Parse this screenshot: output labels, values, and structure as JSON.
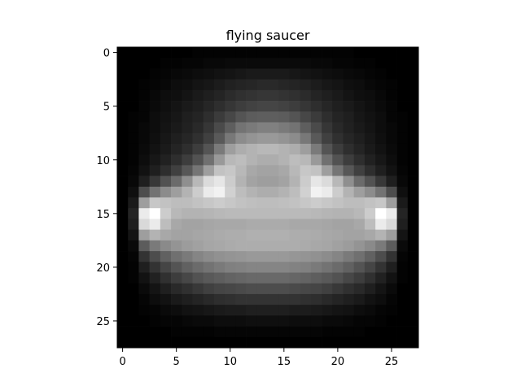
{
  "chart_data": {
    "type": "heatmap",
    "title": "flying saucer",
    "colormap": "gray",
    "xlabel": "",
    "ylabel": "",
    "xlim": [
      -0.5,
      27.5
    ],
    "ylim": [
      27.5,
      -0.5
    ],
    "x_ticks": [
      0,
      5,
      10,
      15,
      20,
      25
    ],
    "y_ticks": [
      0,
      5,
      10,
      15,
      20,
      25
    ],
    "x_tick_labels": [
      "0",
      "5",
      "10",
      "15",
      "20",
      "25"
    ],
    "y_tick_labels": [
      "0",
      "5",
      "10",
      "15",
      "20",
      "25"
    ],
    "grid": false,
    "vmin": 0,
    "vmax": 1,
    "rows": 28,
    "cols": 28,
    "values": [
      [
        0.0,
        0.0,
        0.0,
        0.0,
        0.0,
        0.0,
        0.0,
        0.01,
        0.01,
        0.01,
        0.01,
        0.01,
        0.01,
        0.01,
        0.01,
        0.01,
        0.01,
        0.01,
        0.01,
        0.01,
        0.01,
        0.01,
        0.0,
        0.0,
        0.0,
        0.0,
        0.0,
        0.0
      ],
      [
        0.0,
        0.0,
        0.0,
        0.0,
        0.01,
        0.01,
        0.02,
        0.02,
        0.03,
        0.03,
        0.04,
        0.04,
        0.04,
        0.04,
        0.04,
        0.04,
        0.04,
        0.04,
        0.03,
        0.03,
        0.02,
        0.02,
        0.01,
        0.01,
        0.0,
        0.0,
        0.0,
        0.0
      ],
      [
        0.0,
        0.0,
        0.0,
        0.01,
        0.02,
        0.03,
        0.04,
        0.05,
        0.06,
        0.07,
        0.08,
        0.09,
        0.1,
        0.1,
        0.1,
        0.1,
        0.09,
        0.08,
        0.07,
        0.06,
        0.05,
        0.04,
        0.03,
        0.02,
        0.01,
        0.0,
        0.0,
        0.0
      ],
      [
        0.0,
        0.0,
        0.01,
        0.02,
        0.03,
        0.05,
        0.06,
        0.08,
        0.09,
        0.11,
        0.13,
        0.14,
        0.15,
        0.16,
        0.16,
        0.15,
        0.14,
        0.13,
        0.11,
        0.09,
        0.08,
        0.06,
        0.05,
        0.03,
        0.02,
        0.01,
        0.0,
        0.0
      ],
      [
        0.0,
        0.0,
        0.01,
        0.03,
        0.05,
        0.06,
        0.08,
        0.1,
        0.12,
        0.14,
        0.17,
        0.19,
        0.2,
        0.21,
        0.21,
        0.2,
        0.19,
        0.17,
        0.14,
        0.12,
        0.1,
        0.08,
        0.06,
        0.05,
        0.03,
        0.01,
        0.0,
        0.0
      ],
      [
        0.0,
        0.0,
        0.02,
        0.04,
        0.06,
        0.08,
        0.1,
        0.12,
        0.15,
        0.18,
        0.21,
        0.24,
        0.26,
        0.27,
        0.27,
        0.26,
        0.24,
        0.21,
        0.18,
        0.15,
        0.12,
        0.1,
        0.08,
        0.06,
        0.04,
        0.02,
        0.0,
        0.0
      ],
      [
        0.0,
        0.01,
        0.02,
        0.05,
        0.07,
        0.09,
        0.12,
        0.14,
        0.18,
        0.23,
        0.28,
        0.33,
        0.36,
        0.37,
        0.37,
        0.36,
        0.33,
        0.28,
        0.23,
        0.18,
        0.14,
        0.12,
        0.09,
        0.07,
        0.05,
        0.02,
        0.01,
        0.0
      ],
      [
        0.0,
        0.01,
        0.03,
        0.05,
        0.08,
        0.1,
        0.13,
        0.16,
        0.21,
        0.29,
        0.37,
        0.45,
        0.48,
        0.5,
        0.5,
        0.48,
        0.45,
        0.37,
        0.29,
        0.21,
        0.16,
        0.13,
        0.1,
        0.08,
        0.05,
        0.03,
        0.01,
        0.0
      ],
      [
        0.0,
        0.01,
        0.03,
        0.06,
        0.09,
        0.12,
        0.15,
        0.19,
        0.25,
        0.35,
        0.47,
        0.55,
        0.58,
        0.6,
        0.6,
        0.58,
        0.55,
        0.47,
        0.35,
        0.25,
        0.19,
        0.15,
        0.12,
        0.09,
        0.06,
        0.03,
        0.01,
        0.0
      ],
      [
        0.0,
        0.01,
        0.04,
        0.07,
        0.1,
        0.14,
        0.18,
        0.24,
        0.33,
        0.48,
        0.62,
        0.68,
        0.7,
        0.72,
        0.72,
        0.7,
        0.68,
        0.62,
        0.48,
        0.33,
        0.24,
        0.18,
        0.14,
        0.1,
        0.07,
        0.04,
        0.01,
        0.0
      ],
      [
        0.0,
        0.01,
        0.05,
        0.09,
        0.13,
        0.18,
        0.24,
        0.32,
        0.44,
        0.6,
        0.72,
        0.74,
        0.7,
        0.68,
        0.68,
        0.7,
        0.74,
        0.72,
        0.6,
        0.44,
        0.32,
        0.24,
        0.18,
        0.13,
        0.09,
        0.05,
        0.01,
        0.0
      ],
      [
        0.0,
        0.02,
        0.07,
        0.12,
        0.18,
        0.25,
        0.34,
        0.46,
        0.62,
        0.76,
        0.78,
        0.72,
        0.66,
        0.64,
        0.64,
        0.66,
        0.72,
        0.78,
        0.76,
        0.62,
        0.46,
        0.34,
        0.25,
        0.18,
        0.12,
        0.07,
        0.02,
        0.0
      ],
      [
        0.0,
        0.03,
        0.12,
        0.22,
        0.32,
        0.42,
        0.56,
        0.72,
        0.86,
        0.9,
        0.8,
        0.7,
        0.64,
        0.62,
        0.62,
        0.64,
        0.7,
        0.8,
        0.9,
        0.86,
        0.72,
        0.56,
        0.42,
        0.32,
        0.22,
        0.12,
        0.03,
        0.0
      ],
      [
        0.0,
        0.06,
        0.3,
        0.45,
        0.55,
        0.62,
        0.7,
        0.8,
        0.92,
        0.95,
        0.82,
        0.74,
        0.7,
        0.68,
        0.68,
        0.7,
        0.74,
        0.82,
        0.95,
        0.92,
        0.8,
        0.7,
        0.62,
        0.55,
        0.45,
        0.3,
        0.06,
        0.0
      ],
      [
        0.0,
        0.1,
        0.62,
        0.78,
        0.76,
        0.74,
        0.74,
        0.76,
        0.78,
        0.8,
        0.78,
        0.76,
        0.75,
        0.74,
        0.74,
        0.75,
        0.76,
        0.78,
        0.8,
        0.78,
        0.76,
        0.74,
        0.74,
        0.76,
        0.78,
        0.62,
        0.1,
        0.0
      ],
      [
        0.0,
        0.14,
        0.92,
        1.0,
        0.8,
        0.72,
        0.7,
        0.7,
        0.71,
        0.72,
        0.73,
        0.73,
        0.73,
        0.73,
        0.73,
        0.73,
        0.73,
        0.73,
        0.72,
        0.71,
        0.7,
        0.7,
        0.72,
        0.8,
        1.0,
        0.92,
        0.14,
        0.0
      ],
      [
        0.0,
        0.12,
        0.85,
        0.92,
        0.74,
        0.66,
        0.64,
        0.64,
        0.65,
        0.66,
        0.66,
        0.66,
        0.67,
        0.67,
        0.67,
        0.67,
        0.66,
        0.66,
        0.66,
        0.65,
        0.64,
        0.64,
        0.66,
        0.74,
        0.92,
        0.85,
        0.12,
        0.0
      ],
      [
        0.0,
        0.08,
        0.62,
        0.7,
        0.66,
        0.64,
        0.64,
        0.65,
        0.66,
        0.67,
        0.68,
        0.68,
        0.69,
        0.69,
        0.69,
        0.69,
        0.68,
        0.68,
        0.67,
        0.66,
        0.65,
        0.64,
        0.64,
        0.66,
        0.7,
        0.62,
        0.08,
        0.0
      ],
      [
        0.0,
        0.04,
        0.36,
        0.48,
        0.54,
        0.58,
        0.61,
        0.63,
        0.65,
        0.66,
        0.67,
        0.68,
        0.68,
        0.68,
        0.68,
        0.68,
        0.68,
        0.67,
        0.66,
        0.65,
        0.63,
        0.61,
        0.58,
        0.54,
        0.48,
        0.36,
        0.04,
        0.0
      ],
      [
        0.0,
        0.02,
        0.2,
        0.3,
        0.38,
        0.44,
        0.48,
        0.52,
        0.55,
        0.57,
        0.58,
        0.59,
        0.6,
        0.6,
        0.6,
        0.6,
        0.59,
        0.58,
        0.57,
        0.55,
        0.52,
        0.48,
        0.44,
        0.38,
        0.3,
        0.2,
        0.02,
        0.0
      ],
      [
        0.0,
        0.01,
        0.12,
        0.2,
        0.27,
        0.33,
        0.38,
        0.42,
        0.45,
        0.48,
        0.5,
        0.51,
        0.52,
        0.52,
        0.52,
        0.52,
        0.51,
        0.5,
        0.48,
        0.45,
        0.42,
        0.38,
        0.33,
        0.27,
        0.2,
        0.12,
        0.01,
        0.0
      ],
      [
        0.0,
        0.01,
        0.07,
        0.13,
        0.19,
        0.24,
        0.28,
        0.32,
        0.35,
        0.37,
        0.39,
        0.4,
        0.41,
        0.41,
        0.41,
        0.41,
        0.4,
        0.39,
        0.37,
        0.35,
        0.32,
        0.28,
        0.24,
        0.19,
        0.13,
        0.07,
        0.01,
        0.0
      ],
      [
        0.0,
        0.0,
        0.04,
        0.08,
        0.12,
        0.16,
        0.19,
        0.22,
        0.25,
        0.27,
        0.28,
        0.29,
        0.3,
        0.3,
        0.3,
        0.3,
        0.29,
        0.28,
        0.27,
        0.25,
        0.22,
        0.19,
        0.16,
        0.12,
        0.08,
        0.04,
        0.0,
        0.0
      ],
      [
        0.0,
        0.0,
        0.02,
        0.05,
        0.07,
        0.1,
        0.12,
        0.14,
        0.16,
        0.18,
        0.19,
        0.2,
        0.2,
        0.2,
        0.2,
        0.2,
        0.2,
        0.19,
        0.18,
        0.16,
        0.14,
        0.12,
        0.1,
        0.07,
        0.05,
        0.02,
        0.0,
        0.0
      ],
      [
        0.0,
        0.0,
        0.01,
        0.02,
        0.04,
        0.05,
        0.07,
        0.08,
        0.09,
        0.1,
        0.11,
        0.11,
        0.12,
        0.12,
        0.12,
        0.12,
        0.11,
        0.11,
        0.1,
        0.09,
        0.08,
        0.07,
        0.05,
        0.04,
        0.02,
        0.01,
        0.0,
        0.0
      ],
      [
        0.0,
        0.0,
        0.0,
        0.01,
        0.02,
        0.02,
        0.03,
        0.04,
        0.04,
        0.05,
        0.05,
        0.05,
        0.06,
        0.06,
        0.06,
        0.06,
        0.05,
        0.05,
        0.05,
        0.04,
        0.04,
        0.03,
        0.02,
        0.02,
        0.01,
        0.0,
        0.0,
        0.0
      ],
      [
        0.0,
        0.0,
        0.0,
        0.0,
        0.0,
        0.01,
        0.01,
        0.01,
        0.01,
        0.02,
        0.02,
        0.02,
        0.02,
        0.02,
        0.02,
        0.02,
        0.02,
        0.02,
        0.02,
        0.01,
        0.01,
        0.01,
        0.01,
        0.0,
        0.0,
        0.0,
        0.0,
        0.0
      ],
      [
        0.0,
        0.0,
        0.0,
        0.0,
        0.0,
        0.0,
        0.0,
        0.0,
        0.0,
        0.0,
        0.0,
        0.0,
        0.0,
        0.0,
        0.0,
        0.0,
        0.0,
        0.0,
        0.0,
        0.0,
        0.0,
        0.0,
        0.0,
        0.0,
        0.0,
        0.0,
        0.0,
        0.0
      ]
    ]
  }
}
